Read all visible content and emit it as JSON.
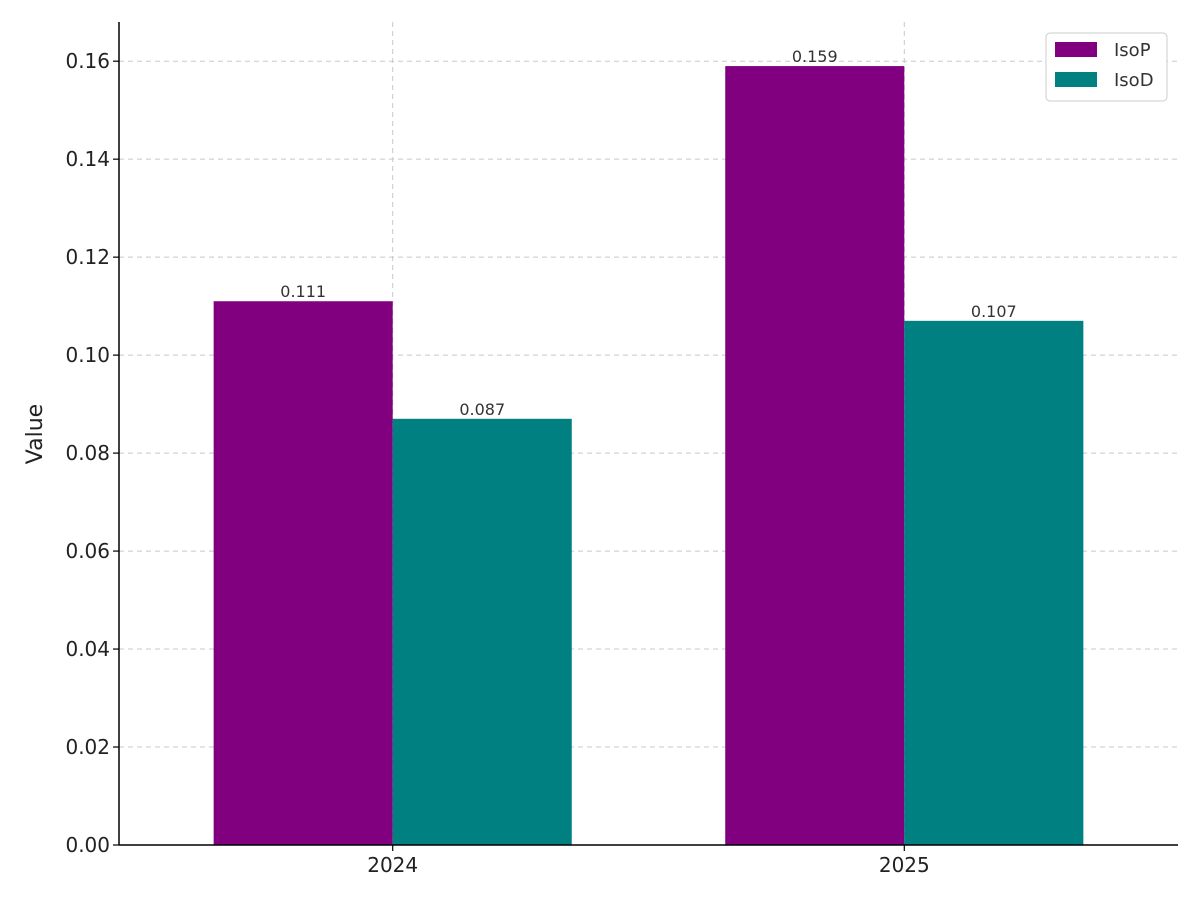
{
  "chart_data": {
    "type": "bar",
    "title": "",
    "xlabel": "",
    "ylabel": "Value",
    "categories": [
      "2024",
      "2025"
    ],
    "series": [
      {
        "name": "IsoP",
        "values": [
          0.111,
          0.159
        ],
        "color": "#800080"
      },
      {
        "name": "IsoD",
        "values": [
          0.087,
          0.107
        ],
        "color": "#008080"
      }
    ],
    "ylim": [
      0,
      0.168
    ],
    "yticks": [
      "0.00",
      "0.02",
      "0.04",
      "0.06",
      "0.08",
      "0.10",
      "0.12",
      "0.14",
      "0.16"
    ],
    "data_labels": [
      [
        "0.111",
        "0.159"
      ],
      [
        "0.087",
        "0.107"
      ]
    ],
    "grid": true,
    "legend": "top-right"
  }
}
